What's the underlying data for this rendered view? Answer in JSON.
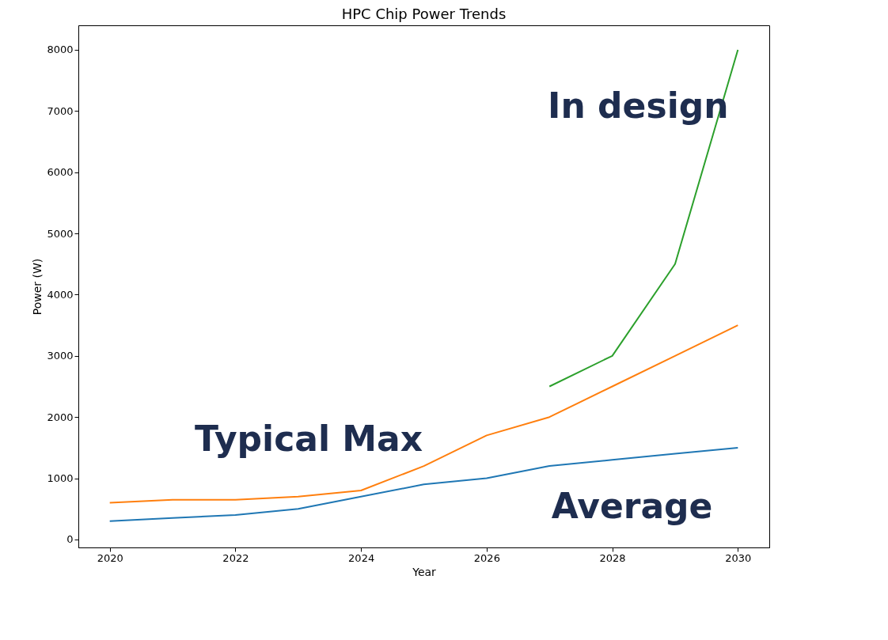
{
  "chart_data": {
    "type": "line",
    "title": "HPC Chip Power Trends",
    "xlabel": "Year",
    "ylabel": "Power (W)",
    "x": [
      2020,
      2021,
      2022,
      2023,
      2024,
      2025,
      2026,
      2027,
      2028,
      2029,
      2030
    ],
    "series": [
      {
        "name": "Average",
        "color": "#1f77b4",
        "values": [
          300,
          350,
          400,
          500,
          700,
          900,
          1000,
          1200,
          1300,
          1400,
          1500
        ]
      },
      {
        "name": "Typical Max",
        "color": "#ff7f0e",
        "values": [
          600,
          650,
          650,
          700,
          800,
          1200,
          1700,
          2000,
          2500,
          3000,
          3500
        ]
      },
      {
        "name": "In design",
        "color": "#2ca02c",
        "values": [
          null,
          null,
          null,
          null,
          null,
          null,
          null,
          2500,
          3000,
          4500,
          8000
        ]
      }
    ],
    "xlim": [
      2019.5,
      2030.5
    ],
    "xticks": [
      2020,
      2022,
      2024,
      2026,
      2028,
      2030
    ],
    "ylim": [
      -130,
      8400
    ],
    "yticks": [
      0,
      1000,
      2000,
      3000,
      4000,
      5000,
      6000,
      7000,
      8000
    ],
    "grid": false,
    "legend": false
  }
}
